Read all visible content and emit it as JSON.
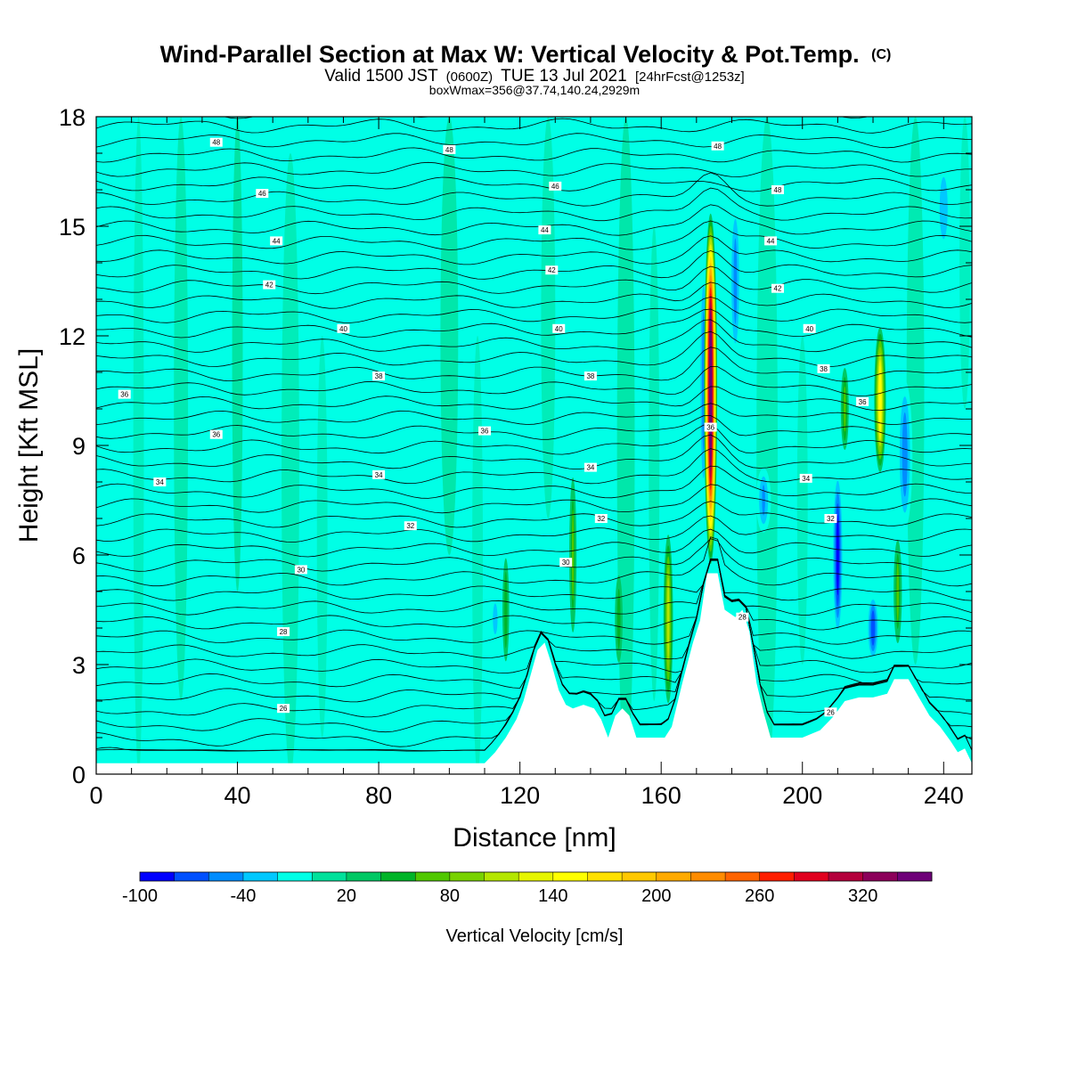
{
  "chart_data": {
    "type": "heatmap",
    "title": "Wind-Parallel Section at Max W: Vertical Velocity & Pot.Temp.",
    "title_mark": "(C)",
    "subtitle_parts": [
      "Valid 1500 JST",
      "(0600Z)",
      "TUE 13 Jul 2021",
      "[24hrFcst@1253z]"
    ],
    "subtitle2": "boxWmax=356@37.74,140.24,2929m",
    "xlabel": "Distance [nm]",
    "ylabel": "Height [Kft MSL]",
    "xlim": [
      0,
      248
    ],
    "ylim": [
      0,
      18
    ],
    "x_ticks": [
      "0",
      "40",
      "80",
      "120",
      "160",
      "200",
      "240"
    ],
    "y_ticks": [
      "0",
      "3",
      "6",
      "9",
      "12",
      "15",
      "18"
    ],
    "colorbar": {
      "label": "Vertical Velocity [cm/s]",
      "range": [
        -100,
        360
      ],
      "step": 20,
      "tick_labels": [
        "-100",
        "-40",
        "20",
        "80",
        "140",
        "200",
        "260",
        "320"
      ],
      "colors": [
        "#0000ff",
        "#0050ff",
        "#008cff",
        "#00c8ff",
        "#00ffe6",
        "#00e19b",
        "#00c864",
        "#00b428",
        "#50c800",
        "#78d200",
        "#b4e600",
        "#e6f500",
        "#ffff00",
        "#ffe100",
        "#ffc800",
        "#ffaa00",
        "#ff8c00",
        "#ff6400",
        "#ff1e00",
        "#e1001e",
        "#b4003c",
        "#8c005a",
        "#6e0078"
      ]
    },
    "terrain_profile": [
      [
        0,
        0.3
      ],
      [
        110,
        0.3
      ],
      [
        113,
        0.6
      ],
      [
        116,
        1.0
      ],
      [
        119,
        1.5
      ],
      [
        121,
        2.0
      ],
      [
        123,
        2.7
      ],
      [
        125,
        3.4
      ],
      [
        127,
        3.6
      ],
      [
        129,
        3.0
      ],
      [
        131,
        2.3
      ],
      [
        133,
        1.9
      ],
      [
        135,
        1.8
      ],
      [
        138,
        1.9
      ],
      [
        141,
        1.8
      ],
      [
        143,
        1.5
      ],
      [
        145,
        1.0
      ],
      [
        147,
        1.6
      ],
      [
        149,
        1.8
      ],
      [
        151,
        1.6
      ],
      [
        153,
        1.0
      ],
      [
        157,
        1.0
      ],
      [
        161,
        1.0
      ],
      [
        163,
        1.3
      ],
      [
        166,
        2.5
      ],
      [
        169,
        3.6
      ],
      [
        171,
        4.2
      ],
      [
        173,
        5.5
      ],
      [
        176,
        5.5
      ],
      [
        178,
        4.5
      ],
      [
        181,
        4.3
      ],
      [
        183,
        4.5
      ],
      [
        185,
        3.9
      ],
      [
        187,
        2.5
      ],
      [
        189,
        1.7
      ],
      [
        191,
        1.0
      ],
      [
        195,
        1.0
      ],
      [
        200,
        1.0
      ],
      [
        205,
        1.2
      ],
      [
        207,
        1.4
      ],
      [
        209,
        1.6
      ],
      [
        212,
        2.0
      ],
      [
        216,
        2.1
      ],
      [
        220,
        2.1
      ],
      [
        224,
        2.2
      ],
      [
        226,
        2.6
      ],
      [
        230,
        2.6
      ],
      [
        233,
        2.1
      ],
      [
        236,
        1.6
      ],
      [
        239,
        1.3
      ],
      [
        242,
        0.9
      ],
      [
        244,
        0.6
      ],
      [
        246,
        0.7
      ],
      [
        248,
        0.3
      ]
    ],
    "updrafts": [
      {
        "x": 174,
        "w": 3.0,
        "ymin": 5.5,
        "ymax": 15.6,
        "peak": 356
      },
      {
        "x": 222,
        "w": 3.0,
        "ymin": 8.0,
        "ymax": 12.5,
        "peak": 150
      },
      {
        "x": 212,
        "w": 2.5,
        "ymin": 8.5,
        "ymax": 11.5,
        "peak": 70
      },
      {
        "x": 162,
        "w": 2.5,
        "ymin": 1.5,
        "ymax": 7.0,
        "peak": 110
      },
      {
        "x": 135,
        "w": 2.5,
        "ymin": 3.0,
        "ymax": 9.0,
        "peak": 60
      },
      {
        "x": 227,
        "w": 3.0,
        "ymin": 3.0,
        "ymax": 7.0,
        "peak": 60
      },
      {
        "x": 148,
        "w": 3.0,
        "ymin": 2.5,
        "ymax": 6.0,
        "peak": 55
      },
      {
        "x": 116,
        "w": 4.0,
        "ymin": 2.0,
        "ymax": 7.0,
        "peak": 40
      }
    ],
    "downdrafts": [
      {
        "x": 172,
        "w": 2.0,
        "ymin": 7.0,
        "ymax": 14.5,
        "peak": -60
      },
      {
        "x": 210,
        "w": 2.5,
        "ymin": 3.5,
        "ymax": 8.5,
        "peak": -95
      },
      {
        "x": 220,
        "w": 3.0,
        "ymin": 3.0,
        "ymax": 5.0,
        "peak": -80
      },
      {
        "x": 229,
        "w": 4.0,
        "ymin": 6.5,
        "ymax": 11.0,
        "peak": -60
      },
      {
        "x": 189,
        "w": 4.0,
        "ymin": 6.5,
        "ymax": 8.5,
        "peak": -50
      },
      {
        "x": 181,
        "w": 3.0,
        "ymin": 11.0,
        "ymax": 16.0,
        "peak": -55
      },
      {
        "x": 113,
        "w": 2.5,
        "ymin": 3.5,
        "ymax": 5.0,
        "peak": -40
      },
      {
        "x": 240,
        "w": 5.0,
        "ymin": 14.0,
        "ymax": 17.0,
        "peak": -40
      }
    ],
    "theta_labels": [
      {
        "x": 34,
        "y": 17.3,
        "label": "48"
      },
      {
        "x": 100,
        "y": 17.1,
        "label": "48"
      },
      {
        "x": 176,
        "y": 17.2,
        "label": "48"
      },
      {
        "x": 193,
        "y": 16.0,
        "label": "48"
      },
      {
        "x": 47,
        "y": 15.9,
        "label": "46"
      },
      {
        "x": 130,
        "y": 16.1,
        "label": "46"
      },
      {
        "x": 51,
        "y": 14.6,
        "label": "44"
      },
      {
        "x": 127,
        "y": 14.9,
        "label": "44"
      },
      {
        "x": 191,
        "y": 14.6,
        "label": "44"
      },
      {
        "x": 49,
        "y": 13.4,
        "label": "42"
      },
      {
        "x": 129,
        "y": 13.8,
        "label": "42"
      },
      {
        "x": 193,
        "y": 13.3,
        "label": "42"
      },
      {
        "x": 70,
        "y": 12.2,
        "label": "40"
      },
      {
        "x": 131,
        "y": 12.2,
        "label": "40"
      },
      {
        "x": 202,
        "y": 12.2,
        "label": "40"
      },
      {
        "x": 80,
        "y": 10.9,
        "label": "38"
      },
      {
        "x": 140,
        "y": 10.9,
        "label": "38"
      },
      {
        "x": 206,
        "y": 11.1,
        "label": "38"
      },
      {
        "x": 8,
        "y": 10.4,
        "label": "36"
      },
      {
        "x": 34,
        "y": 9.3,
        "label": "36"
      },
      {
        "x": 110,
        "y": 9.4,
        "label": "36"
      },
      {
        "x": 217,
        "y": 10.2,
        "label": "36"
      },
      {
        "x": 174,
        "y": 9.5,
        "label": "36"
      },
      {
        "x": 18,
        "y": 8.0,
        "label": "34"
      },
      {
        "x": 80,
        "y": 8.2,
        "label": "34"
      },
      {
        "x": 140,
        "y": 8.4,
        "label": "34"
      },
      {
        "x": 201,
        "y": 8.1,
        "label": "34"
      },
      {
        "x": 89,
        "y": 6.8,
        "label": "32"
      },
      {
        "x": 143,
        "y": 7.0,
        "label": "32"
      },
      {
        "x": 208,
        "y": 7.0,
        "label": "32"
      },
      {
        "x": 58,
        "y": 5.6,
        "label": "30"
      },
      {
        "x": 133,
        "y": 5.8,
        "label": "30"
      },
      {
        "x": 53,
        "y": 3.9,
        "label": "28"
      },
      {
        "x": 183,
        "y": 4.3,
        "label": "28"
      },
      {
        "x": 53,
        "y": 1.8,
        "label": "26"
      },
      {
        "x": 208,
        "y": 1.7,
        "label": "26"
      }
    ]
  }
}
